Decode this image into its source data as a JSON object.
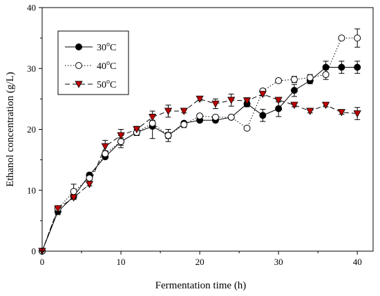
{
  "chart_data": {
    "type": "line",
    "xlabel": "Fermentation time (h)",
    "ylabel": "Ethanol concentration (g/L)",
    "xlim": [
      0,
      42
    ],
    "ylim": [
      0,
      40
    ],
    "x_ticks": [
      0,
      10,
      20,
      30,
      40
    ],
    "y_ticks": [
      0,
      10,
      20,
      30,
      40
    ],
    "legend_position": "top-left",
    "grid": false,
    "series": [
      {
        "name": "30",
        "name_unit": "C",
        "line_style": "solid",
        "marker": "filled-circle",
        "color": "#000000",
        "x": [
          0,
          2,
          4,
          6,
          8,
          10,
          12,
          14,
          16,
          18,
          20,
          22,
          24,
          26,
          28,
          30,
          32,
          34,
          36,
          38,
          40
        ],
        "values": [
          0,
          6.5,
          9.0,
          12.5,
          15.5,
          18.0,
          19.5,
          20.5,
          19.0,
          21.0,
          21.5,
          21.5,
          22.0,
          24.2,
          22.3,
          23.4,
          26.4,
          28.0,
          30.2,
          30.2,
          30.2
        ],
        "errors": [
          0,
          0.5,
          0.5,
          0.3,
          0.3,
          0.6,
          0.5,
          2.0,
          0.5,
          0.3,
          0.3,
          0.3,
          0.3,
          0.5,
          1.0,
          1.3,
          1.0,
          0.5,
          1.0,
          1.0,
          1.0
        ]
      },
      {
        "name": "40",
        "name_unit": "C",
        "line_style": "dotted",
        "marker": "open-circle",
        "color": "#000000",
        "x": [
          0,
          2,
          4,
          6,
          8,
          10,
          12,
          14,
          16,
          18,
          20,
          22,
          24,
          26,
          28,
          30,
          32,
          34,
          36,
          38,
          40
        ],
        "values": [
          0,
          7.0,
          9.8,
          12.0,
          16.0,
          18.0,
          19.5,
          21.0,
          19.0,
          20.8,
          22.2,
          22.0,
          22.0,
          20.2,
          26.3,
          28.0,
          28.2,
          28.5,
          29.0,
          35.0,
          35.0
        ],
        "errors": [
          0,
          0.3,
          1.2,
          0.3,
          0.5,
          1.0,
          0.5,
          0.5,
          1.0,
          0.5,
          0.3,
          0.3,
          0.3,
          0.3,
          0.3,
          0.3,
          0.5,
          0.5,
          0.8,
          0.3,
          1.5
        ]
      },
      {
        "name": "50",
        "name_unit": "C",
        "line_style": "dashed",
        "marker": "filled-triangle-down",
        "color": "#c00000",
        "x": [
          0,
          2,
          4,
          6,
          8,
          10,
          12,
          14,
          16,
          18,
          20,
          22,
          24,
          26,
          28,
          30,
          32,
          34,
          36,
          38,
          40
        ],
        "values": [
          0,
          7.0,
          8.8,
          11.0,
          17.2,
          19.0,
          20.0,
          22.0,
          23.0,
          23.0,
          25.0,
          24.2,
          24.8,
          24.7,
          25.8,
          24.8,
          24.0,
          23.0,
          24.0,
          22.8,
          22.6
        ],
        "errors": [
          0,
          0.3,
          0.3,
          0.3,
          1.0,
          1.0,
          0.5,
          1.0,
          1.0,
          0.3,
          0.3,
          0.8,
          1.0,
          0.5,
          0.3,
          0.3,
          0.3,
          0.3,
          0.3,
          0.3,
          1.0
        ]
      }
    ]
  }
}
